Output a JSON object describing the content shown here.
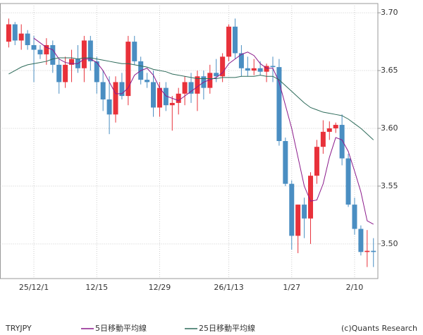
{
  "chart_data": {
    "type": "candlestick",
    "symbol": "TRYJPY",
    "credit": "(c)Quants Research",
    "categories": [
      null,
      null,
      null,
      null,
      "25/12/1",
      null,
      null,
      null,
      null,
      null,
      null,
      null,
      null,
      null,
      "12/15",
      null,
      null,
      null,
      null,
      null,
      null,
      null,
      null,
      null,
      "12/29",
      null,
      null,
      null,
      null,
      null,
      null,
      null,
      null,
      null,
      null,
      "26/1/13",
      null,
      null,
      null,
      null,
      null,
      null,
      null,
      null,
      null,
      "1/27",
      null,
      null,
      null,
      null,
      null,
      null,
      null,
      null,
      null,
      "2/10",
      null,
      null,
      null
    ],
    "open": [
      3.675,
      3.69,
      3.676,
      3.682,
      3.672,
      3.668,
      3.664,
      3.672,
      3.655,
      3.64,
      3.655,
      3.66,
      3.652,
      3.676,
      3.658,
      3.64,
      3.625,
      3.612,
      3.64,
      3.628,
      3.675,
      3.658,
      3.642,
      3.64,
      3.618,
      3.635,
      3.62,
      3.622,
      3.63,
      3.64,
      3.63,
      3.645,
      3.635,
      3.648,
      3.645,
      3.662,
      3.688,
      3.665,
      3.652,
      3.65,
      3.652,
      3.649,
      3.654,
      3.653,
      3.589,
      3.552,
      3.507,
      3.534,
      3.522,
      3.559,
      3.584,
      3.597,
      3.6,
      3.603,
      3.574,
      3.534,
      3.513,
      3.493,
      3.494
    ],
    "high": [
      3.695,
      3.692,
      3.69,
      3.685,
      3.68,
      3.672,
      3.678,
      3.676,
      3.66,
      3.662,
      3.668,
      3.672,
      3.68,
      3.68,
      3.662,
      3.65,
      3.645,
      3.645,
      3.648,
      3.68,
      3.68,
      3.662,
      3.648,
      3.65,
      3.64,
      3.64,
      3.628,
      3.635,
      3.645,
      3.648,
      3.65,
      3.65,
      3.655,
      3.66,
      3.665,
      3.69,
      3.695,
      3.672,
      3.662,
      3.66,
      3.658,
      3.656,
      3.662,
      3.66,
      3.592,
      3.555,
      3.534,
      3.54,
      3.562,
      3.59,
      3.607,
      3.606,
      3.605,
      3.612,
      3.578,
      3.54,
      3.516,
      3.512,
      3.505
    ],
    "low": [
      3.67,
      3.672,
      3.668,
      3.668,
      3.64,
      3.66,
      3.655,
      3.648,
      3.63,
      3.635,
      3.64,
      3.648,
      3.64,
      3.65,
      3.63,
      3.615,
      3.595,
      3.605,
      3.625,
      3.62,
      3.655,
      3.638,
      3.635,
      3.61,
      3.61,
      3.615,
      3.598,
      3.612,
      3.62,
      3.622,
      3.615,
      3.625,
      3.63,
      3.64,
      3.64,
      3.658,
      3.66,
      3.645,
      3.645,
      3.646,
      3.646,
      3.64,
      3.64,
      3.585,
      3.55,
      3.495,
      3.492,
      3.505,
      3.5,
      3.552,
      3.578,
      3.59,
      3.596,
      3.568,
      3.532,
      3.508,
      3.49,
      3.48,
      3.48
    ],
    "close": [
      3.69,
      3.676,
      3.682,
      3.672,
      3.668,
      3.664,
      3.672,
      3.655,
      3.64,
      3.655,
      3.66,
      3.652,
      3.676,
      3.658,
      3.64,
      3.625,
      3.612,
      3.64,
      3.628,
      3.675,
      3.658,
      3.642,
      3.64,
      3.618,
      3.635,
      3.62,
      3.622,
      3.63,
      3.64,
      3.63,
      3.645,
      3.635,
      3.648,
      3.645,
      3.662,
      3.688,
      3.665,
      3.652,
      3.65,
      3.652,
      3.649,
      3.654,
      3.653,
      3.589,
      3.552,
      3.507,
      3.534,
      3.522,
      3.559,
      3.584,
      3.597,
      3.6,
      3.603,
      3.574,
      3.534,
      3.513,
      3.493,
      3.494,
      3.493
    ],
    "up_color": "#e8313a",
    "down_color": "#4a8ec2",
    "series": [
      {
        "name": "5日移動平均線",
        "color": "#8b1a8b",
        "values": [
          null,
          null,
          null,
          null,
          3.678,
          3.674,
          3.67,
          3.668,
          3.66,
          3.657,
          3.656,
          3.656,
          3.66,
          3.66,
          3.657,
          3.65,
          3.64,
          3.63,
          3.63,
          3.635,
          3.646,
          3.65,
          3.652,
          3.646,
          3.635,
          3.628,
          3.626,
          3.624,
          3.628,
          3.632,
          3.636,
          3.64,
          3.642,
          3.644,
          3.648,
          3.656,
          3.66,
          3.664,
          3.666,
          3.663,
          3.656,
          3.652,
          3.652,
          3.64,
          3.62,
          3.6,
          3.575,
          3.55,
          3.537,
          3.538,
          3.552,
          3.575,
          3.592,
          3.59,
          3.58,
          3.563,
          3.545,
          3.52,
          3.517
        ]
      },
      {
        "name": "25日移動平均線",
        "color": "#2e6b5a",
        "values": [
          3.647,
          3.65,
          3.653,
          3.655,
          3.656,
          3.657,
          3.658,
          3.66,
          3.661,
          3.661,
          3.661,
          3.66,
          3.661,
          3.661,
          3.66,
          3.659,
          3.658,
          3.657,
          3.656,
          3.656,
          3.655,
          3.654,
          3.653,
          3.651,
          3.65,
          3.649,
          3.647,
          3.646,
          3.645,
          3.644,
          3.643,
          3.643,
          3.643,
          3.643,
          3.644,
          3.644,
          3.644,
          3.645,
          3.645,
          3.645,
          3.646,
          3.645,
          3.645,
          3.642,
          3.637,
          3.632,
          3.627,
          3.622,
          3.618,
          3.616,
          3.614,
          3.613,
          3.612,
          3.611,
          3.608,
          3.604,
          3.6,
          3.595,
          3.59
        ]
      }
    ],
    "ylim": [
      3.47,
      3.708
    ],
    "yticks": [
      {
        "value": 3.5,
        "label": "3.50"
      },
      3.55,
      {
        "value": 3.6,
        "label": "3.60"
      },
      3.65,
      {
        "value": 3.7,
        "label": "3.70"
      }
    ],
    "grid": true
  }
}
